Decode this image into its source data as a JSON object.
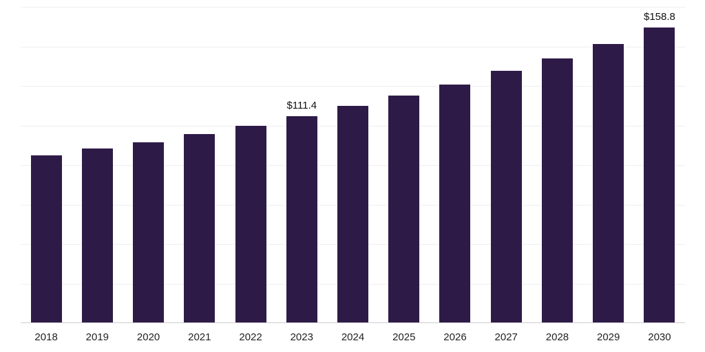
{
  "chart_data": {
    "type": "bar",
    "title": "",
    "xlabel": "",
    "ylabel": "",
    "categories": [
      "2018",
      "2019",
      "2020",
      "2021",
      "2022",
      "2023",
      "2024",
      "2025",
      "2026",
      "2027",
      "2028",
      "2029",
      "2030"
    ],
    "values": [
      90.1,
      93.8,
      97.2,
      101.5,
      106.2,
      111.4,
      116.7,
      122.3,
      128.3,
      135.6,
      142.4,
      150.2,
      158.8
    ],
    "labeled_points": [
      {
        "category": "2023",
        "label": "$111.4"
      },
      {
        "category": "2030",
        "label": "$158.8"
      }
    ],
    "ylim": [
      0,
      170
    ],
    "grid": "horizontal-faint",
    "gridline_divisions": 8,
    "legend": "none",
    "bar_color": "#2e1a47",
    "axis_line_color": "#cfcbd4",
    "gridline_color": "#f0edf2",
    "label_color": "#111111",
    "tick_label_color": "#222222",
    "background_color": "#ffffff"
  }
}
